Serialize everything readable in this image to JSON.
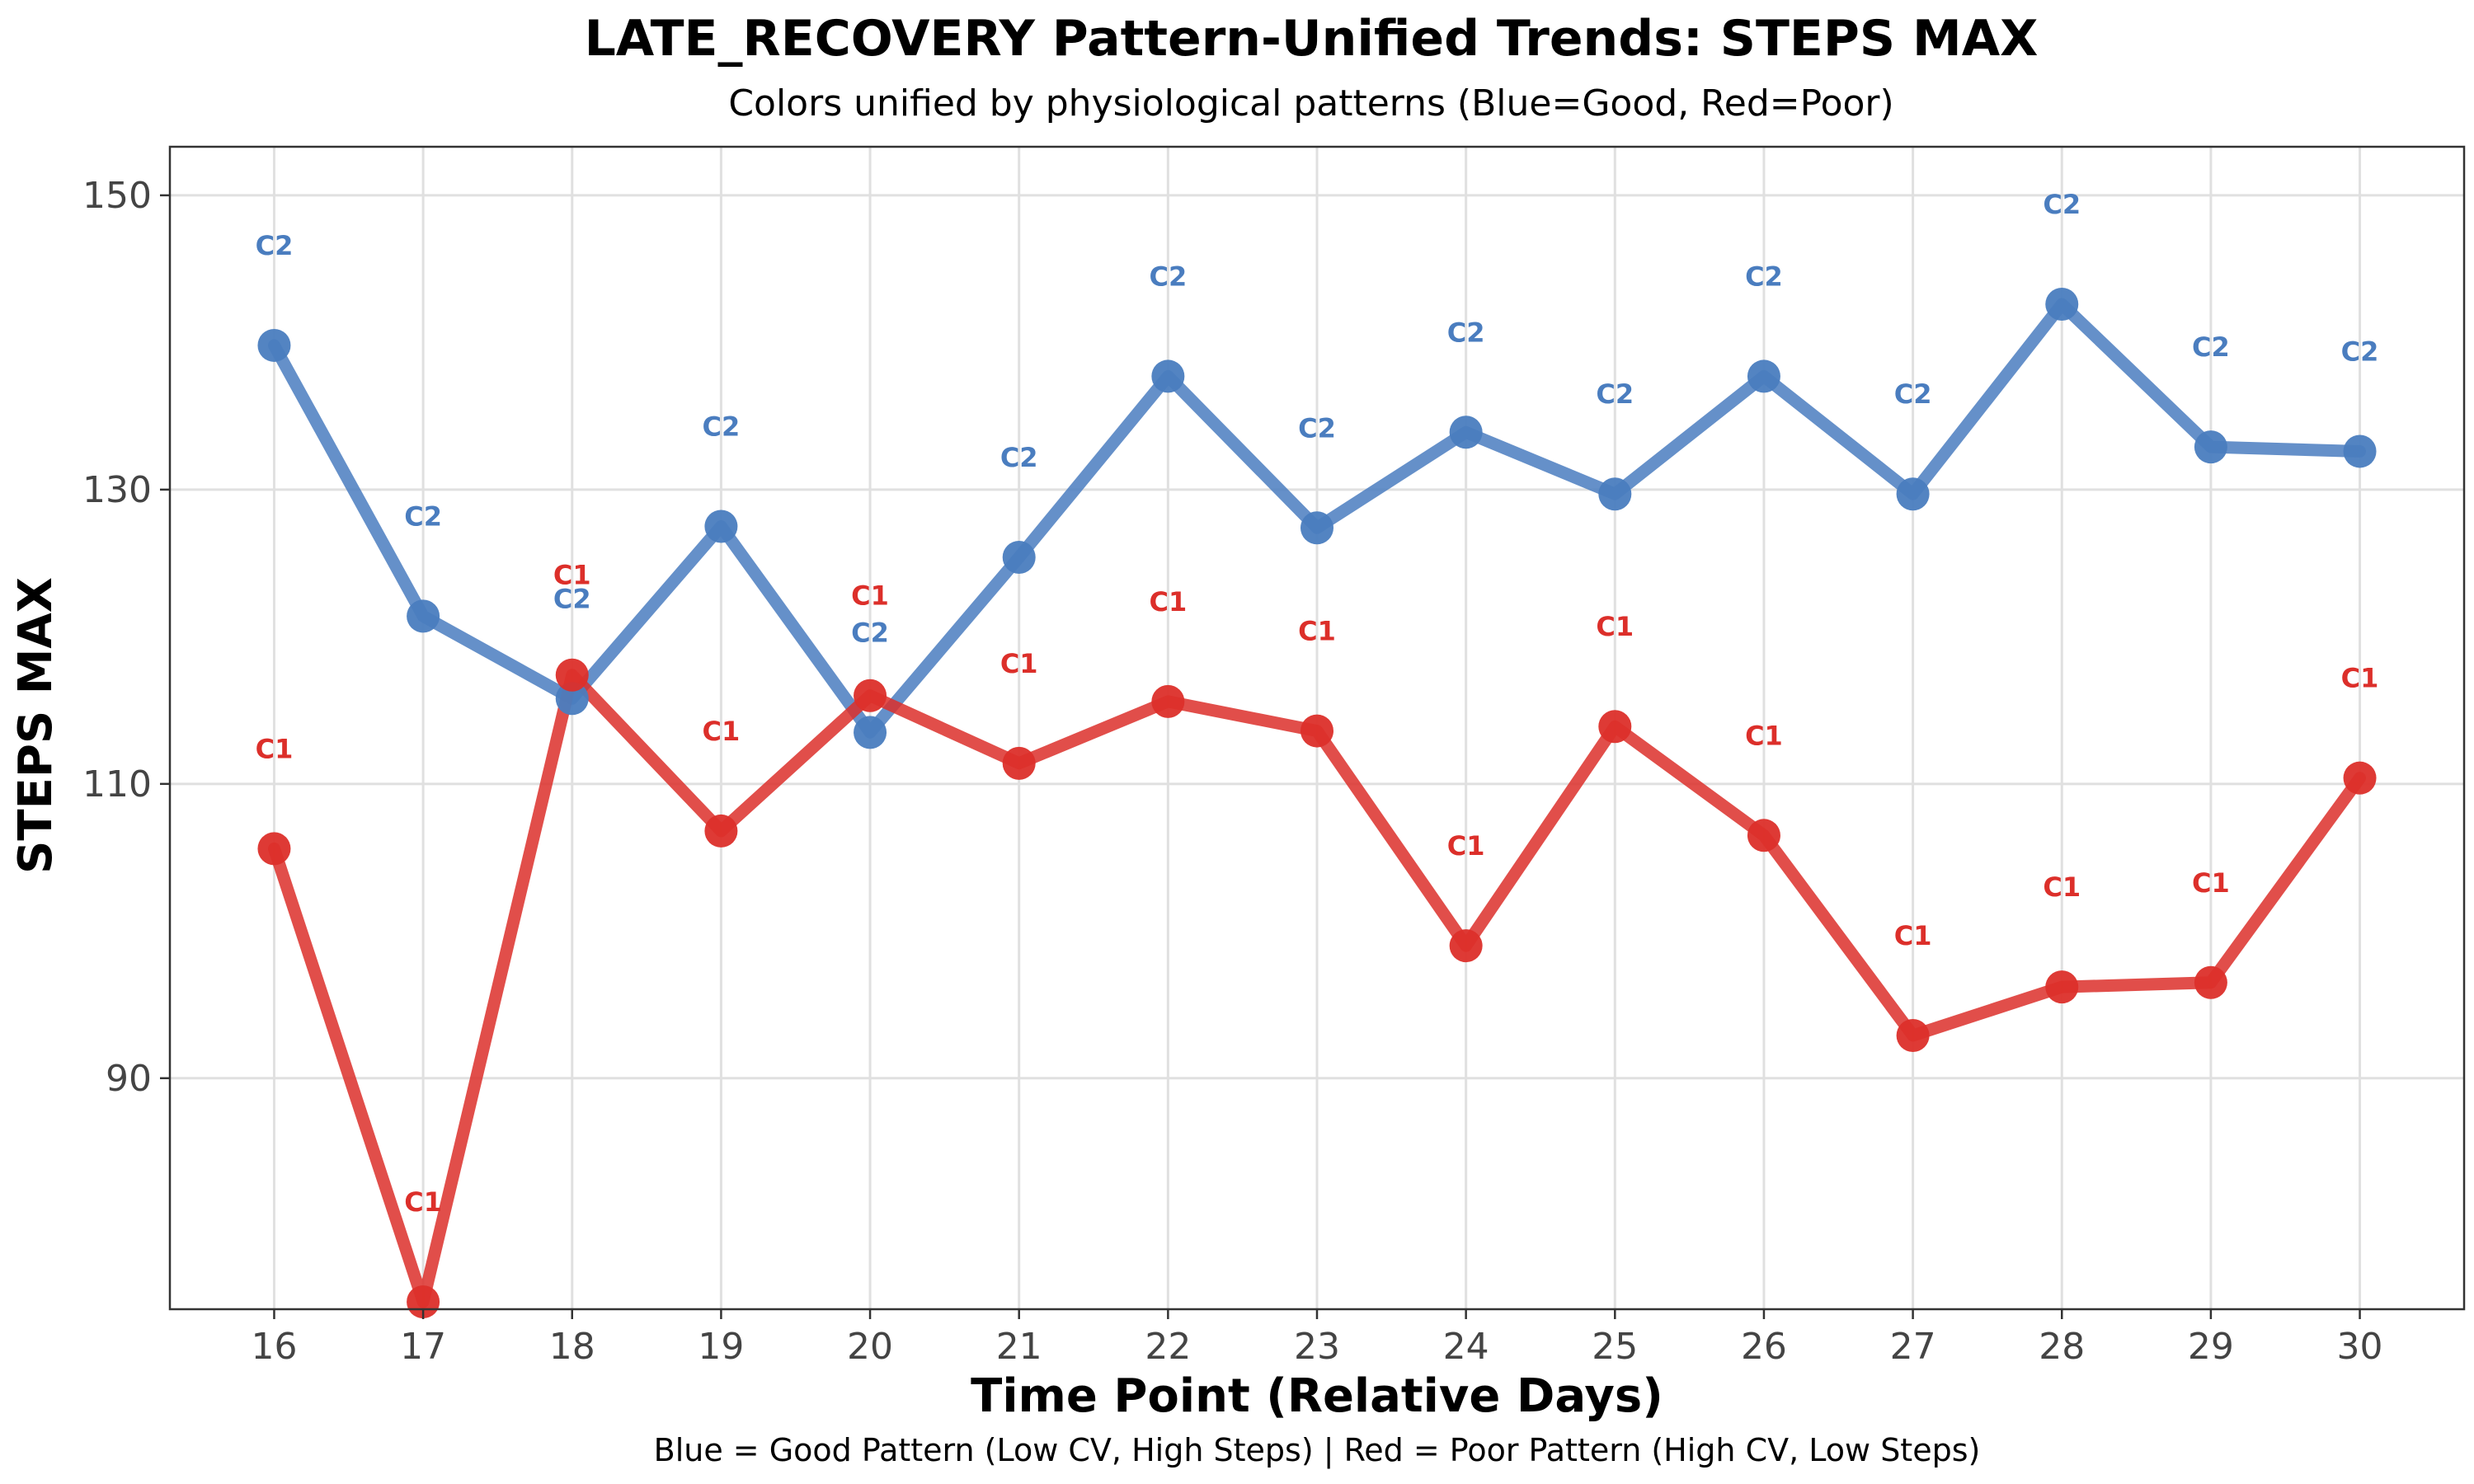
{
  "chart_data": {
    "type": "line",
    "title": "LATE_RECOVERY Pattern-Unified Trends: STEPS MAX",
    "subtitle": "Colors unified by physiological patterns (Blue=Good, Red=Poor)",
    "caption": "Blue = Good Pattern (Low CV, High Steps) | Red = Poor Pattern (High CV, Low Steps)",
    "xlabel": "Time Point (Relative Days)",
    "ylabel": "STEPS MAX",
    "x": [
      16,
      17,
      18,
      19,
      20,
      21,
      22,
      23,
      24,
      25,
      26,
      27,
      28,
      29,
      30
    ],
    "xlim": [
      15.3,
      30.7
    ],
    "ylim": [
      74.3,
      153.3
    ],
    "yticks": [
      90,
      110,
      130,
      150
    ],
    "grid": true,
    "legend": "none",
    "series": [
      {
        "label": "C2",
        "color": "#4a7dbf",
        "values": [
          139.8,
          121.4,
          115.8,
          127.5,
          113.5,
          125.4,
          137.7,
          127.4,
          133.9,
          129.7,
          137.7,
          129.7,
          142.6,
          132.9,
          132.6
        ]
      },
      {
        "label": "C1",
        "color": "#dc2f2a",
        "values": [
          105.6,
          74.8,
          117.4,
          106.8,
          116.0,
          111.4,
          115.6,
          113.6,
          99.0,
          113.9,
          106.5,
          92.9,
          96.2,
          96.5,
          110.4
        ]
      }
    ]
  }
}
